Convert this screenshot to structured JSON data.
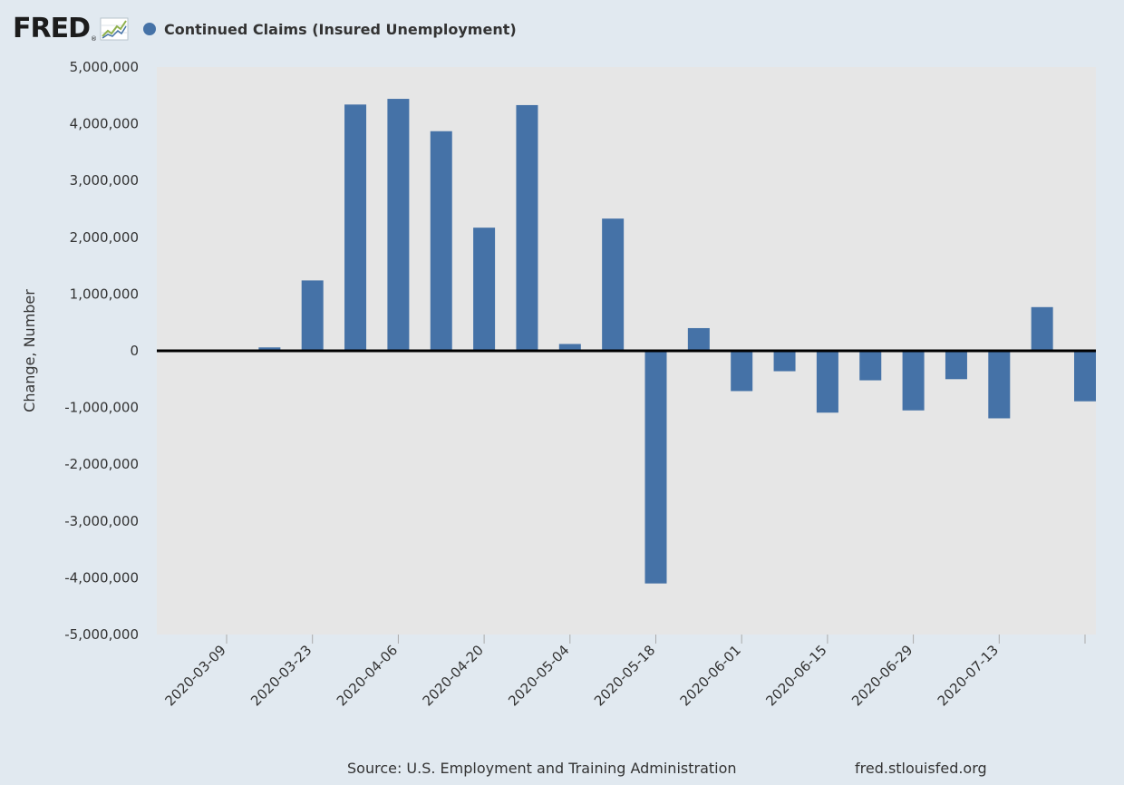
{
  "header": {
    "logo_text": "FRED",
    "logo_reg": "®",
    "legend_label": "Continued Claims (Insured Unemployment)"
  },
  "colors": {
    "bar": "#4572a7",
    "plot_bg": "#e6e6e6",
    "page_bg": "#e1e9f0",
    "zero_line": "#000000"
  },
  "chart_data": {
    "type": "bar",
    "title": "",
    "ylabel": "Change, Number",
    "xlabel": "",
    "ylim": [
      -5000000,
      5000000
    ],
    "yticks": [
      5000000,
      4000000,
      3000000,
      2000000,
      1000000,
      0,
      -1000000,
      -2000000,
      -3000000,
      -4000000,
      -5000000
    ],
    "ytick_labels": [
      "5,000,000",
      "4,000,000",
      "3,000,000",
      "2,000,000",
      "1,000,000",
      "0",
      "-1,000,000",
      "-2,000,000",
      "-3,000,000",
      "-4,000,000",
      "-5,000,000"
    ],
    "categories": [
      "2020-03-09",
      "2020-03-16",
      "2020-03-23",
      "2020-03-30",
      "2020-04-06",
      "2020-04-13",
      "2020-04-20",
      "2020-04-27",
      "2020-05-04",
      "2020-05-11",
      "2020-05-18",
      "2020-05-25",
      "2020-06-01",
      "2020-06-08",
      "2020-06-15",
      "2020-06-22",
      "2020-06-29",
      "2020-07-06",
      "2020-07-13",
      "2020-07-20",
      "2020-07-27"
    ],
    "values": [
      0,
      60000,
      1240000,
      4340000,
      4440000,
      3870000,
      2170000,
      4330000,
      120000,
      2330000,
      -4100000,
      400000,
      -710000,
      -360000,
      -1090000,
      -520000,
      -1050000,
      -500000,
      -1190000,
      770000,
      -890000
    ],
    "xtick_labels": [
      "2020-03-09",
      "2020-03-23",
      "2020-04-06",
      "2020-04-20",
      "2020-05-04",
      "2020-05-18",
      "2020-06-01",
      "2020-06-15",
      "2020-06-29",
      "2020-07-13"
    ],
    "grid": false
  },
  "footer": {
    "source": "Source: U.S. Employment and Training Administration",
    "url": "fred.stlouisfed.org"
  }
}
